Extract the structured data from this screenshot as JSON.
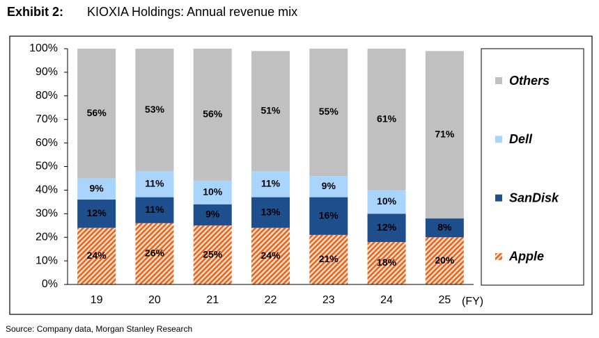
{
  "chart_data": {
    "type": "stacked_bar",
    "exhibit": "Exhibit 2:",
    "title": "KIOXIA Holdings: Annual revenue mix",
    "x_label": "(FY)",
    "source": "Source: Company data, Morgan Stanley Research",
    "categories": [
      "19",
      "20",
      "21",
      "22",
      "23",
      "24",
      "25"
    ],
    "series": [
      {
        "name": "Apple",
        "color": "#e8631c",
        "hatched": true,
        "label_color": "#000000",
        "values": [
          24,
          26,
          25,
          24,
          21,
          18,
          20
        ],
        "value_labels": [
          "24%",
          "26%",
          "25%",
          "24%",
          "21%",
          "18%",
          "20%"
        ]
      },
      {
        "name": "SanDisk",
        "color": "#1f4e8c",
        "label_color": "#ffffff",
        "values": [
          12,
          11,
          9,
          13,
          16,
          12,
          8
        ],
        "value_labels": [
          "12%",
          "11%",
          "9%",
          "13%",
          "16%",
          "12%",
          "8%"
        ]
      },
      {
        "name": "Dell",
        "color": "#a9d4fb",
        "label_color": "#000000",
        "values": [
          9,
          11,
          10,
          11,
          9,
          10,
          null
        ],
        "value_labels": [
          "9%",
          "11%",
          "10%",
          "11%",
          "9%",
          "10%",
          null
        ]
      },
      {
        "name": "Others",
        "color": "#c0c0c0",
        "label_color": "#000000",
        "values": [
          56,
          53,
          56,
          51,
          55,
          61,
          71
        ],
        "value_labels": [
          "56%",
          "53%",
          "56%",
          "51%",
          "55%",
          "61%",
          "71%"
        ]
      }
    ],
    "ylim": [
      0,
      100
    ],
    "yticks": [
      {
        "value": 0,
        "label": "0%"
      },
      {
        "value": 10,
        "label": "10%"
      },
      {
        "value": 20,
        "label": "20%"
      },
      {
        "value": 30,
        "label": "30%"
      },
      {
        "value": 40,
        "label": "40%"
      },
      {
        "value": 50,
        "label": "50%"
      },
      {
        "value": 60,
        "label": "60%"
      },
      {
        "value": 70,
        "label": "70%"
      },
      {
        "value": 80,
        "label": "80%"
      },
      {
        "value": 90,
        "label": "90%"
      },
      {
        "value": 100,
        "label": "100%"
      }
    ],
    "grid": false,
    "legend": "right"
  }
}
